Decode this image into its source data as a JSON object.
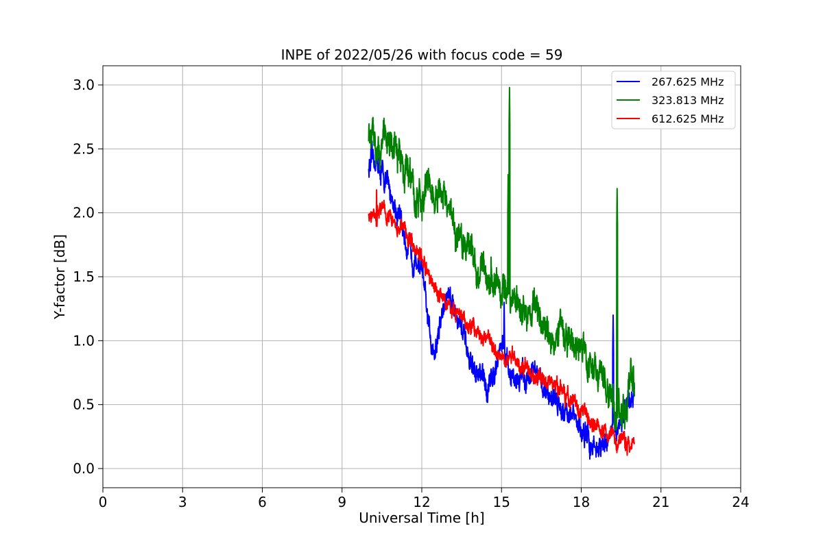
{
  "chart_data": {
    "type": "line",
    "title": "INPE of 2022/05/26 with focus code = 59",
    "xlabel": "Universal Time [h]",
    "ylabel": "Y-factor [dB]",
    "xlim": [
      0,
      24
    ],
    "ylim": [
      -0.15,
      3.15
    ],
    "xticks": [
      0,
      3,
      6,
      9,
      12,
      15,
      18,
      21,
      24
    ],
    "xtick_labels": [
      "0",
      "3",
      "6",
      "9",
      "12",
      "15",
      "18",
      "21",
      "24"
    ],
    "yticks": [
      0.0,
      0.5,
      1.0,
      1.5,
      2.0,
      2.5,
      3.0
    ],
    "ytick_labels": [
      "0.0",
      "0.5",
      "1.0",
      "1.5",
      "2.0",
      "2.5",
      "3.0"
    ],
    "grid": true,
    "legend_position": "top-right",
    "series": [
      {
        "name": "267.625 MHz",
        "color": "#0000ff",
        "x": [
          10.0,
          10.25,
          10.5,
          10.75,
          11.0,
          11.25,
          11.5,
          11.75,
          12.0,
          12.25,
          12.5,
          12.75,
          13.0,
          13.25,
          13.5,
          13.75,
          14.0,
          14.25,
          14.5,
          14.75,
          15.0,
          15.25,
          15.5,
          15.75,
          16.0,
          16.25,
          16.5,
          16.75,
          17.0,
          17.25,
          17.5,
          17.75,
          18.0,
          18.25,
          18.5,
          18.75,
          19.0,
          19.25,
          19.5,
          19.75,
          20.0
        ],
        "y": [
          2.35,
          2.42,
          2.3,
          2.2,
          2.05,
          1.9,
          1.7,
          1.65,
          1.55,
          1.1,
          0.9,
          1.2,
          1.4,
          1.25,
          1.1,
          0.85,
          0.75,
          0.7,
          0.62,
          0.8,
          1.0,
          0.75,
          0.7,
          0.72,
          0.7,
          0.75,
          0.65,
          0.6,
          0.55,
          0.5,
          0.45,
          0.38,
          0.3,
          0.22,
          0.18,
          0.15,
          0.25,
          0.3,
          0.4,
          0.45,
          0.55
        ],
        "noise": 0.1
      },
      {
        "name": "323.813 MHz",
        "color": "#008000",
        "x": [
          10.0,
          10.25,
          10.5,
          10.75,
          11.0,
          11.25,
          11.5,
          11.75,
          12.0,
          12.25,
          12.5,
          12.75,
          13.0,
          13.25,
          13.5,
          13.75,
          14.0,
          14.25,
          14.5,
          14.75,
          15.0,
          15.25,
          15.5,
          15.75,
          16.0,
          16.25,
          16.5,
          16.75,
          17.0,
          17.25,
          17.5,
          17.75,
          18.0,
          18.25,
          18.5,
          18.75,
          19.0,
          19.25,
          19.5,
          19.75,
          20.0
        ],
        "y": [
          2.6,
          2.55,
          2.58,
          2.6,
          2.45,
          2.4,
          2.35,
          2.1,
          2.05,
          2.25,
          2.05,
          2.15,
          2.0,
          1.85,
          1.75,
          1.8,
          1.6,
          1.55,
          1.5,
          1.45,
          1.4,
          1.35,
          1.3,
          1.25,
          1.2,
          1.3,
          1.15,
          1.0,
          1.05,
          1.1,
          1.0,
          0.95,
          0.95,
          0.85,
          0.8,
          0.7,
          0.6,
          0.5,
          0.4,
          0.55,
          0.7
        ],
        "noise": 0.14
      },
      {
        "name": "612.625 MHz",
        "color": "#ff0000",
        "x": [
          10.0,
          10.25,
          10.5,
          10.75,
          11.0,
          11.25,
          11.5,
          11.75,
          12.0,
          12.25,
          12.5,
          12.75,
          13.0,
          13.25,
          13.5,
          13.75,
          14.0,
          14.25,
          14.5,
          14.75,
          15.0,
          15.25,
          15.5,
          15.75,
          16.0,
          16.25,
          16.5,
          16.75,
          17.0,
          17.25,
          17.5,
          17.75,
          18.0,
          18.25,
          18.5,
          18.75,
          19.0,
          19.25,
          19.5,
          19.75,
          20.0
        ],
        "y": [
          1.95,
          2.0,
          2.05,
          1.98,
          1.92,
          1.88,
          1.8,
          1.75,
          1.65,
          1.5,
          1.42,
          1.35,
          1.28,
          1.22,
          1.18,
          1.12,
          1.08,
          1.05,
          1.0,
          0.95,
          0.9,
          0.88,
          0.85,
          0.8,
          0.78,
          0.72,
          0.7,
          0.68,
          0.62,
          0.6,
          0.55,
          0.5,
          0.45,
          0.4,
          0.35,
          0.3,
          0.28,
          0.25,
          0.22,
          0.2,
          0.25
        ],
        "noise": 0.07
      }
    ],
    "spikes": [
      {
        "series": 1,
        "x": 15.3,
        "y": 2.98
      },
      {
        "series": 1,
        "x": 15.25,
        "y": 2.3
      },
      {
        "series": 1,
        "x": 19.35,
        "y": 2.19
      },
      {
        "series": 0,
        "x": 19.2,
        "y": 1.2
      },
      {
        "series": 0,
        "x": 15.1,
        "y": 1.3
      },
      {
        "series": 2,
        "x": 10.3,
        "y": 2.18
      }
    ]
  }
}
